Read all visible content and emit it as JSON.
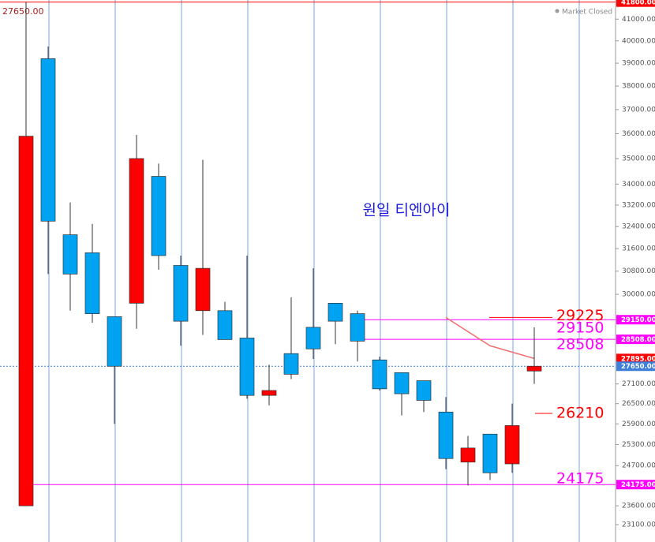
{
  "chart_data": {
    "type": "candlestick",
    "title": "원일 티엔아이",
    "status": "Market Closed",
    "last_price_label": "27650.00",
    "log_scale": true,
    "ylim": [
      22650,
      41900
    ],
    "yticks": [
      {
        "value": 41000,
        "label": "41000.00"
      },
      {
        "value": 40000,
        "label": "40000.00"
      },
      {
        "value": 39000,
        "label": "39000.00"
      },
      {
        "value": 38000,
        "label": "38000.00"
      },
      {
        "value": 37000,
        "label": "37000.00"
      },
      {
        "value": 36000,
        "label": "36000.00"
      },
      {
        "value": 35000,
        "label": "35000.00"
      },
      {
        "value": 34000,
        "label": "34000.00"
      },
      {
        "value": 33200,
        "label": "33200.00"
      },
      {
        "value": 32400,
        "label": "32400.00"
      },
      {
        "value": 31600,
        "label": "31600.00"
      },
      {
        "value": 30800,
        "label": "30800.00"
      },
      {
        "value": 30000,
        "label": "30000.00"
      },
      {
        "value": 27100,
        "label": "27100.00"
      },
      {
        "value": 26500,
        "label": "26500.00"
      },
      {
        "value": 25900,
        "label": "25900.00"
      },
      {
        "value": 25300,
        "label": "25300.00"
      },
      {
        "value": 24700,
        "label": "24700.00"
      },
      {
        "value": 23600,
        "label": "23600.00"
      },
      {
        "value": 23100,
        "label": "23100.00"
      }
    ],
    "up_color": "#ff0000",
    "down_color": "#00a2f2",
    "series": {
      "open": [
        23600,
        39200,
        32100,
        31450,
        29250,
        29700,
        34300,
        31000,
        29450,
        29450,
        28550,
        26750,
        28050,
        28900,
        29700,
        29350,
        27850,
        27450,
        27200,
        26250,
        24800,
        25600,
        24750,
        27500
      ],
      "high": [
        41800,
        39750,
        33300,
        32500,
        29250,
        35950,
        34800,
        31350,
        34950,
        29750,
        31350,
        27700,
        29900,
        30900,
        29700,
        29450,
        27950,
        27450,
        27200,
        26700,
        25550,
        25600,
        26500,
        28900
      ],
      "low": [
        23600,
        30700,
        29450,
        29050,
        25900,
        28850,
        30850,
        28300,
        28650,
        28500,
        26650,
        26450,
        27250,
        27880,
        28350,
        27800,
        26900,
        26150,
        26250,
        24600,
        24150,
        24300,
        24500,
        27100
      ],
      "close": [
        35900,
        32600,
        30700,
        29350,
        27650,
        35000,
        31350,
        29100,
        30900,
        28500,
        26750,
        26900,
        27400,
        28200,
        29100,
        28450,
        26950,
        26800,
        26600,
        24900,
        25200,
        24500,
        25850,
        27650
      ]
    },
    "price_tags": [
      {
        "value": 41800,
        "label": "41800.00",
        "color": "#ff0000"
      },
      {
        "value": 29150,
        "label": "29150.00",
        "color": "#ff00ff"
      },
      {
        "value": 28508,
        "label": "28508.00",
        "color": "#ff00ff"
      },
      {
        "value": 27895,
        "label": "27895.00",
        "color": "#ff0000"
      },
      {
        "value": 27650,
        "label": "27650.00",
        "color": "#3d7fd9"
      },
      {
        "value": 24175,
        "label": "24175.00",
        "color": "#ff00ff"
      }
    ],
    "annotations": [
      {
        "value": 29225,
        "color": "#ff0000"
      },
      {
        "value": 29150,
        "color": "#ff00ff"
      },
      {
        "value": 28508,
        "color": "#ff00ff"
      },
      {
        "value": 26210,
        "color": "#ff0000"
      },
      {
        "value": 24175,
        "color": "#ff00ff"
      }
    ],
    "trend_line": {
      "color": "#f07070",
      "values": [
        29225,
        28300,
        27895
      ]
    }
  }
}
